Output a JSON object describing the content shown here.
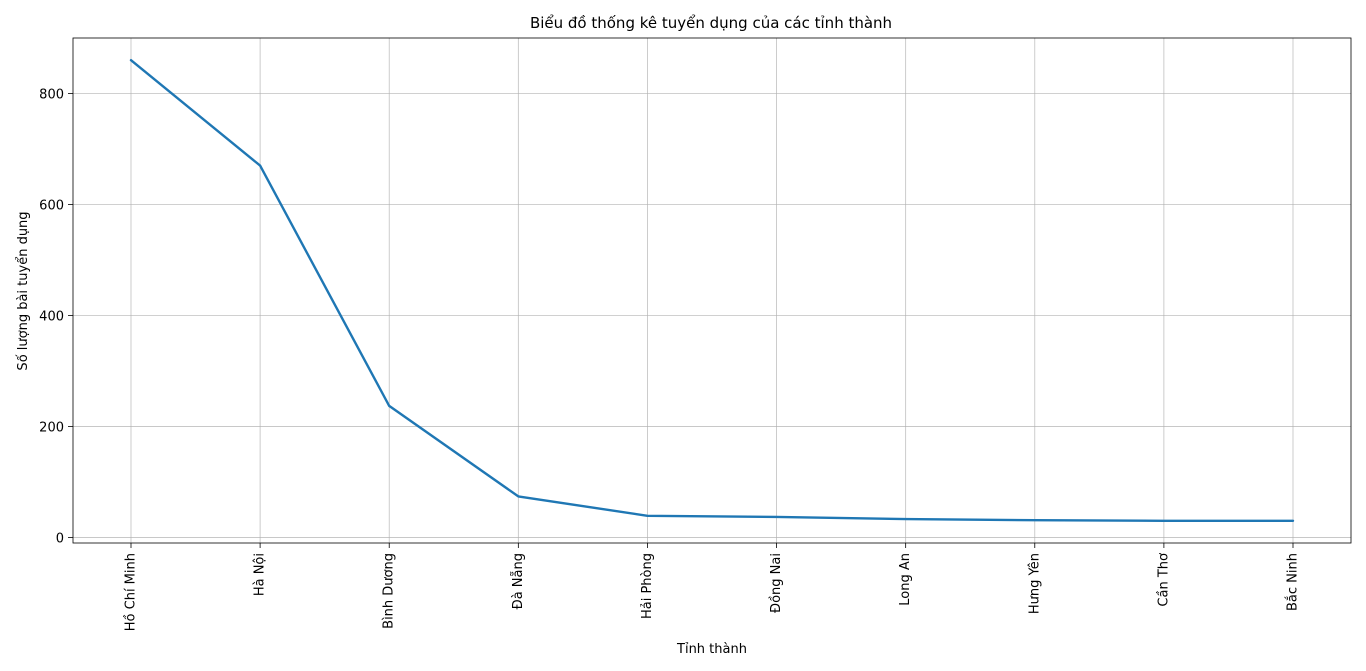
{
  "chart_data": {
    "type": "line",
    "title": "Biểu đồ thống kê tuyển dụng của các tỉnh thành",
    "xlabel": "Tỉnh thành",
    "ylabel": "Số lượng bài tuyển dụng",
    "categories": [
      "Hồ Chí Minh",
      "Hà Nội",
      "Bình Dương",
      "Đà Nẵng",
      "Hải Phòng",
      "Đồng Nai",
      "Long An",
      "Hưng Yên",
      "Cần Thơ",
      "Bắc Ninh"
    ],
    "values": [
      860,
      670,
      237,
      74,
      39,
      37,
      33,
      31,
      30,
      30
    ],
    "yticks": [
      0,
      200,
      400,
      600,
      800
    ],
    "ylim": [
      -10,
      900
    ],
    "grid": true,
    "line_color": "#1f77b4"
  }
}
